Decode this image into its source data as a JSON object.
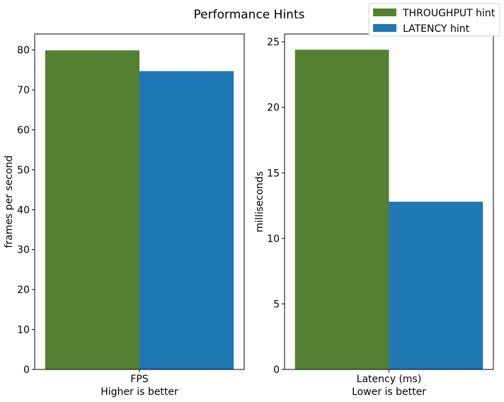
{
  "title": "Performance Hints",
  "legend": {
    "placement": "top-right",
    "entries": [
      {
        "label": "THROUGHPUT hint",
        "color": "#548031"
      },
      {
        "label": "LATENCY hint",
        "color": "#1f77b4"
      }
    ]
  },
  "chart_data": [
    {
      "type": "bar",
      "categories": [
        "FPS"
      ],
      "xlabel": "Higher is better",
      "ylabel": "frames per second",
      "ylim": [
        0,
        84
      ],
      "yticks": [
        0,
        10,
        20,
        30,
        40,
        50,
        60,
        70,
        80
      ],
      "grid": false,
      "series": [
        {
          "name": "THROUGHPUT hint",
          "values": [
            79.9
          ],
          "color": "#548031"
        },
        {
          "name": "LATENCY hint",
          "values": [
            74.7
          ],
          "color": "#1f77b4"
        }
      ]
    },
    {
      "type": "bar",
      "categories": [
        "Latency (ms)"
      ],
      "xlabel": "Lower is better",
      "ylabel": "milliseconds",
      "ylim": [
        0,
        25.6
      ],
      "yticks": [
        0,
        5,
        10,
        15,
        20,
        25
      ],
      "grid": false,
      "series": [
        {
          "name": "THROUGHPUT hint",
          "values": [
            24.4
          ],
          "color": "#548031"
        },
        {
          "name": "LATENCY hint",
          "values": [
            12.8
          ],
          "color": "#1f77b4"
        }
      ]
    }
  ]
}
